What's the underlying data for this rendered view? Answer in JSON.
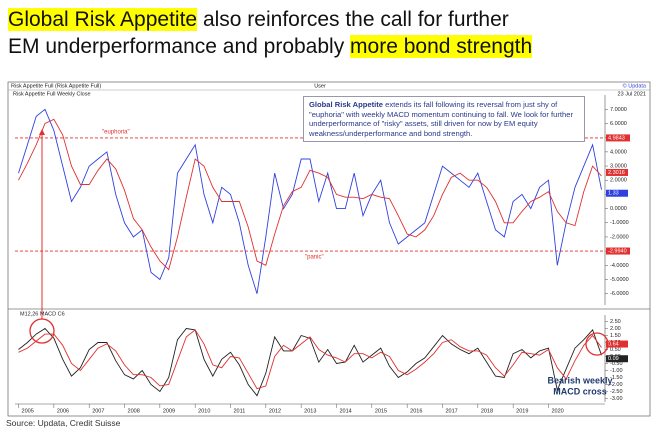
{
  "slide": {
    "title_lines": [
      [
        {
          "text": "Global Risk Appetite",
          "highlight": true
        },
        {
          "text": " also reinforces the call for further",
          "highlight": false
        }
      ],
      [
        {
          "text": "EM underperformance and probably ",
          "highlight": false
        },
        {
          "text": "more bond strength",
          "highlight": true
        }
      ]
    ],
    "source": "Source: Updata, Credit Suisse",
    "note": [
      {
        "text": "Global Risk Appetite",
        "bold": true
      },
      {
        "text": " extends its fall following its reversal from just shy of \"euphoria\" with weekly MACD momentum continuing to fall. We look for further underperformance of \"risky\" assets, still driven for now by EM equity weakness/underperformance and bond strength.",
        "bold": false
      }
    ],
    "callout": [
      "Bearish weekly",
      "MACD cross"
    ],
    "header_left": "Risk Appetite Full (Risk Appetite Full)",
    "header_center": "User",
    "header_right": "© Updata",
    "date": "23 Jul 2021"
  },
  "chart_data": [
    {
      "type": "line",
      "title": "Risk Appetite Full Weekly Close",
      "x": [
        2005,
        2005.25,
        2005.5,
        2005.75,
        2006,
        2006.25,
        2006.5,
        2006.75,
        2007,
        2007.25,
        2007.5,
        2007.75,
        2008,
        2008.25,
        2008.5,
        2008.75,
        2009,
        2009.25,
        2009.5,
        2009.75,
        2010,
        2010.25,
        2010.5,
        2010.75,
        2011,
        2011.25,
        2011.5,
        2011.75,
        2012,
        2012.25,
        2012.5,
        2012.75,
        2013,
        2013.25,
        2013.5,
        2013.75,
        2014,
        2014.25,
        2014.5,
        2014.75,
        2015,
        2015.25,
        2015.5,
        2015.75,
        2016,
        2016.25,
        2016.5,
        2016.75,
        2017,
        2017.25,
        2017.5,
        2017.75,
        2018,
        2018.25,
        2018.5,
        2018.75,
        2019,
        2019.25,
        2019.5,
        2019.75,
        2020,
        2020.25,
        2020.5,
        2020.75,
        2021,
        2021.25,
        2021.5
      ],
      "xlim": [
        2004.9,
        2021.6
      ],
      "ylim": [
        -6.8,
        7.8
      ],
      "yticks": [
        {
          "value": 7,
          "label": "7.0000"
        },
        {
          "value": 6,
          "label": "6.0000"
        },
        {
          "value": 5,
          "label": "5.0000"
        },
        {
          "value": 4,
          "label": "4.0000"
        },
        {
          "value": 3,
          "label": "3.0000"
        },
        {
          "value": 2,
          "label": "2.0000"
        },
        {
          "value": 1,
          "label": "1.0000"
        },
        {
          "value": 0,
          "label": "0.0000"
        },
        {
          "value": -1,
          "label": "-1.0000"
        },
        {
          "value": -2,
          "label": "-2.0000"
        },
        {
          "value": -3,
          "label": "-3.0000"
        },
        {
          "value": -4,
          "label": "-4.0000"
        },
        {
          "value": -5,
          "label": "-5.0000"
        },
        {
          "value": -6,
          "label": "-6.0000"
        }
      ],
      "series": [
        {
          "color": "#3040e0",
          "values": [
            2.5,
            4.5,
            6.5,
            7.0,
            5.5,
            3.0,
            0.5,
            1.5,
            3.0,
            3.5,
            4.0,
            1.0,
            -1.0,
            -2.0,
            -1.5,
            -4.5,
            -5.0,
            -3.5,
            2.5,
            3.5,
            4.5,
            1.0,
            -1.0,
            1.5,
            1.0,
            -1.0,
            -4.0,
            -6.0,
            -2.0,
            2.5,
            0.0,
            1.0,
            3.5,
            3.5,
            0.5,
            2.5,
            0.0,
            0.0,
            2.5,
            -0.5,
            1.0,
            2.0,
            -1.0,
            -2.5,
            -2.0,
            -1.5,
            -1.0,
            1.0,
            3.0,
            2.5,
            2.0,
            1.5,
            2.5,
            0.5,
            -1.5,
            -2.0,
            0.5,
            1.0,
            0.0,
            1.5,
            2.0,
            -4.0,
            -1.0,
            1.5,
            3.0,
            4.5,
            1.33
          ]
        },
        {
          "color": "#e03030",
          "values": [
            2.0,
            3.2,
            4.5,
            6.0,
            6.3,
            5.2,
            3.0,
            1.7,
            1.7,
            2.7,
            3.5,
            2.8,
            1.3,
            -0.7,
            -1.5,
            -2.7,
            -3.7,
            -4.3,
            -2.0,
            0.8,
            3.5,
            3.0,
            1.5,
            0.5,
            0.5,
            0.5,
            -1.3,
            -3.7,
            -4.0,
            -1.8,
            0.2,
            1.2,
            1.5,
            2.7,
            2.5,
            2.2,
            1.0,
            0.8,
            0.8,
            0.7,
            1.0,
            0.8,
            0.7,
            -0.5,
            -1.8,
            -2.0,
            -1.5,
            -0.5,
            1.0,
            2.2,
            2.5,
            2.0,
            2.0,
            1.5,
            0.5,
            -1.0,
            -1.0,
            -0.2,
            0.5,
            0.8,
            1.2,
            -0.2,
            -1.0,
            -1.2,
            1.2,
            3.0,
            2.3016
          ]
        }
      ],
      "levels": [
        {
          "value": 4.9843,
          "label": "4.9843",
          "text": "\"euphoria\"",
          "color": "#e03030"
        },
        {
          "value": -2.994,
          "label": "-2.9940",
          "text": "\"panic\"",
          "color": "#e03030"
        }
      ],
      "last_tags": [
        {
          "value": 2.3016,
          "label": "2.3016",
          "color": "#e03030"
        },
        {
          "value": 1.33,
          "label": "1.33",
          "color": "#3040e0"
        }
      ]
    },
    {
      "type": "line",
      "title": "M12,26 MACD C6",
      "x": [
        2005,
        2005.25,
        2005.5,
        2005.75,
        2006,
        2006.25,
        2006.5,
        2006.75,
        2007,
        2007.25,
        2007.5,
        2007.75,
        2008,
        2008.25,
        2008.5,
        2008.75,
        2009,
        2009.25,
        2009.5,
        2009.75,
        2010,
        2010.25,
        2010.5,
        2010.75,
        2011,
        2011.25,
        2011.5,
        2011.75,
        2012,
        2012.25,
        2012.5,
        2012.75,
        2013,
        2013.25,
        2013.5,
        2013.75,
        2014,
        2014.25,
        2014.5,
        2014.75,
        2015,
        2015.25,
        2015.5,
        2015.75,
        2016,
        2016.25,
        2016.5,
        2016.75,
        2017,
        2017.25,
        2017.5,
        2017.75,
        2018,
        2018.25,
        2018.5,
        2018.75,
        2019,
        2019.25,
        2019.5,
        2019.75,
        2020,
        2020.25,
        2020.5,
        2020.75,
        2021,
        2021.25,
        2021.5
      ],
      "xlim": [
        2004.9,
        2021.6
      ],
      "xticks": [
        2005,
        2006,
        2007,
        2008,
        2009,
        2010,
        2011,
        2012,
        2013,
        2014,
        2015,
        2016,
        2017,
        2018,
        2019,
        2020
      ],
      "ylim": [
        -3.25,
        2.75
      ],
      "yticks": [
        {
          "value": 2.5,
          "label": "2.50"
        },
        {
          "value": 2,
          "label": "2.00"
        },
        {
          "value": 1.5,
          "label": "1.50"
        },
        {
          "value": 1,
          "label": "1.00"
        },
        {
          "value": 0.5,
          "label": "0.50"
        },
        {
          "value": 0,
          "label": "0.00"
        },
        {
          "value": -0.5,
          "label": "-0.50"
        },
        {
          "value": -1,
          "label": "-1.00"
        },
        {
          "value": -1.5,
          "label": "-1.50"
        },
        {
          "value": -2,
          "label": "-2.00"
        },
        {
          "value": -2.5,
          "label": "-2.50"
        },
        {
          "value": -3,
          "label": "-3.00"
        }
      ],
      "series": [
        {
          "color": "#222222",
          "values": [
            0.5,
            1.0,
            1.6,
            2.0,
            1.3,
            -0.2,
            -1.4,
            -0.8,
            0.5,
            1.0,
            1.0,
            -0.3,
            -1.3,
            -1.6,
            -1.0,
            -2.0,
            -2.5,
            -1.5,
            1.2,
            2.0,
            1.9,
            -0.2,
            -1.4,
            -0.2,
            0.3,
            -0.6,
            -2.0,
            -2.8,
            -1.2,
            1.4,
            0.4,
            0.4,
            1.5,
            1.3,
            -0.4,
            0.5,
            -0.5,
            -0.4,
            0.8,
            -0.4,
            0.1,
            0.6,
            -0.7,
            -1.5,
            -1.1,
            -0.5,
            -0.1,
            0.7,
            1.5,
            0.9,
            0.5,
            0.2,
            0.6,
            -0.4,
            -1.4,
            -1.5,
            0.2,
            0.5,
            -0.1,
            0.4,
            0.6,
            -2.4,
            -0.9,
            0.6,
            1.2,
            1.9,
            0.09
          ]
        },
        {
          "color": "#e03030",
          "values": [
            0.3,
            0.6,
            1.1,
            1.6,
            1.6,
            0.8,
            -0.5,
            -1.0,
            -0.2,
            0.6,
            0.9,
            0.4,
            -0.6,
            -1.3,
            -1.3,
            -1.5,
            -2.1,
            -2.0,
            -0.3,
            1.4,
            1.9,
            0.9,
            -0.6,
            -0.8,
            0.0,
            -0.1,
            -1.2,
            -2.3,
            -2.1,
            0.0,
            0.8,
            0.4,
            0.9,
            1.4,
            0.5,
            0.1,
            -0.1,
            -0.4,
            0.2,
            0.2,
            -0.1,
            0.3,
            0.0,
            -1.0,
            -1.3,
            -0.9,
            -0.4,
            0.2,
            1.0,
            1.2,
            0.7,
            0.4,
            0.4,
            0.1,
            -0.8,
            -1.4,
            -0.6,
            0.3,
            0.2,
            0.1,
            0.5,
            -0.8,
            -1.6,
            -0.3,
            0.8,
            1.5,
            0.64
          ]
        }
      ],
      "last_tags": [
        {
          "value": 0.64,
          "label": "0.64",
          "color": "#e03030"
        },
        {
          "value": 0.09,
          "label": "0.09",
          "color": "#222222"
        }
      ]
    }
  ]
}
